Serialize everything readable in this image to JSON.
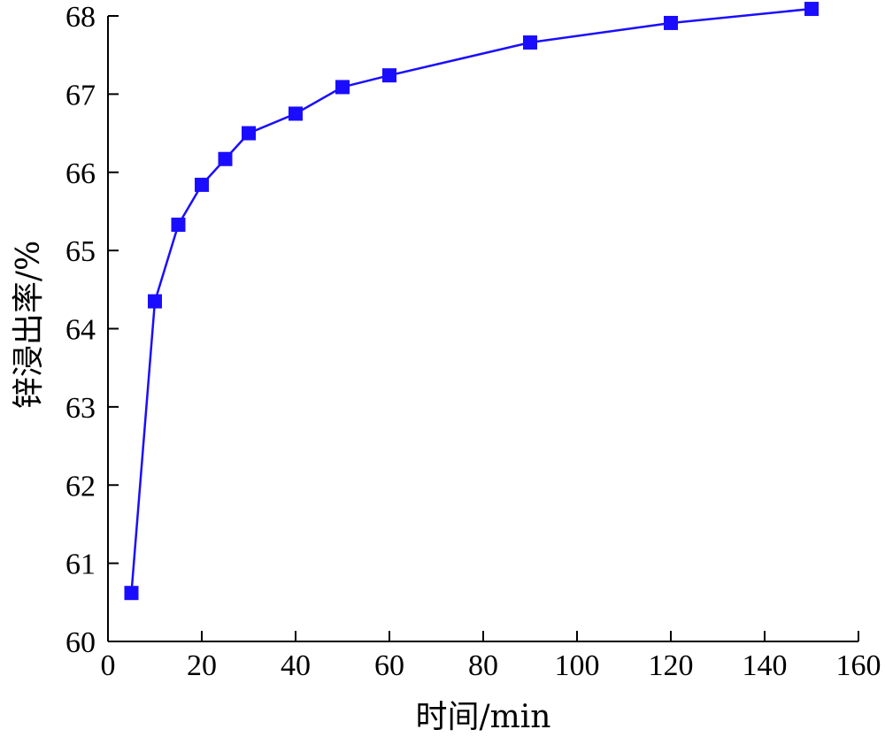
{
  "chart_data": {
    "type": "line",
    "title": "",
    "xlabel": "时间/min",
    "ylabel": "锌浸出率/%",
    "xlim": [
      0,
      160
    ],
    "ylim": [
      60,
      68
    ],
    "xticks": [
      0,
      20,
      40,
      60,
      80,
      100,
      120,
      140,
      160
    ],
    "yticks": [
      60,
      61,
      62,
      63,
      64,
      65,
      66,
      67,
      68
    ],
    "grid": false,
    "legend": "none",
    "series": [
      {
        "marker": "square",
        "color": "#1a0dff",
        "x": [
          5,
          10,
          15,
          20,
          25,
          30,
          40,
          50,
          60,
          90,
          120,
          150
        ],
        "y": [
          60.62,
          64.35,
          65.33,
          65.84,
          66.17,
          66.5,
          66.75,
          67.09,
          67.24,
          67.66,
          67.91,
          68.09
        ]
      }
    ]
  }
}
